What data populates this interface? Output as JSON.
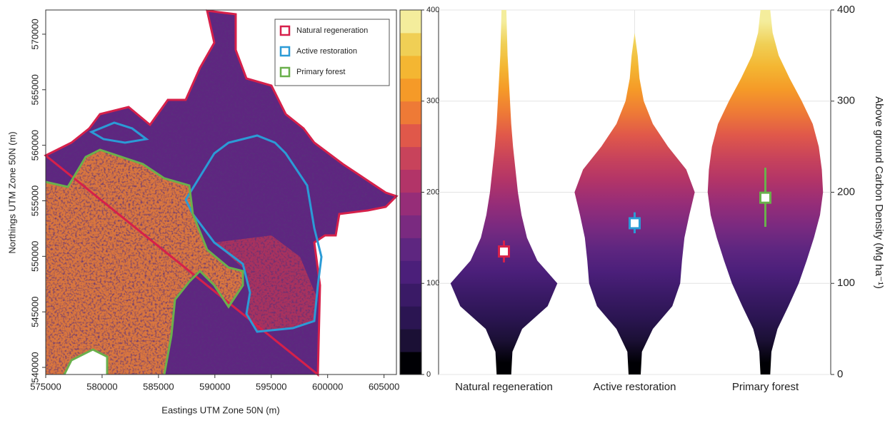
{
  "chart_data": [
    {
      "type": "map",
      "xlabel": "Eastings UTM Zone 50N (m)",
      "ylabel": "Northings UTM Zone 50N (m)",
      "xlim": [
        575000,
        606100
      ],
      "xticks": [
        575000,
        580000,
        585000,
        590000,
        595000,
        600000,
        605000
      ],
      "ylim": [
        539360,
        572180
      ],
      "yticks": [
        540000,
        545000,
        550000,
        555000,
        560000,
        565000,
        570000
      ],
      "legend_position": "upper right",
      "legend": [
        {
          "name": "Natural regeneration",
          "color": "#d6204a"
        },
        {
          "name": "Active restoration",
          "color": "#2b9bd6"
        },
        {
          "name": "Primary forest",
          "color": "#6ab04c"
        }
      ],
      "clim": [
        0,
        400
      ],
      "cticks": [
        0,
        100,
        200,
        300,
        400
      ],
      "colormap": [
        "#000004",
        "#1b1035",
        "#2b1552",
        "#3a1a66",
        "#4b1f7a",
        "#5e2680",
        "#7a2a80",
        "#962d78",
        "#b23468",
        "#c8435b",
        "#e0584a",
        "#ee7a36",
        "#f59a28",
        "#f4b632",
        "#f0cf55",
        "#f4ed9c"
      ]
    },
    {
      "type": "violin",
      "categories": [
        "Natural regeneration",
        "Active restoration",
        "Primary forest"
      ],
      "colors": [
        "#d6204a",
        "#2b9bd6",
        "#6ab04c"
      ],
      "ylabel": "Above ground Carbon Density (Mg ha⁻¹)",
      "ylim": [
        0,
        400
      ],
      "yticks": [
        0,
        100,
        200,
        300,
        400
      ],
      "grid": true,
      "values": [
        135,
        166,
        194
      ],
      "lower": [
        123,
        155,
        162
      ],
      "upper": [
        147,
        178,
        227
      ],
      "kde_y": [
        0,
        25,
        50,
        75,
        100,
        125,
        150,
        175,
        200,
        225,
        250,
        275,
        300,
        325,
        350,
        375,
        400
      ],
      "density": [
        [
          0.12,
          0.14,
          0.3,
          0.72,
          0.88,
          0.55,
          0.38,
          0.29,
          0.23,
          0.19,
          0.15,
          0.12,
          0.1,
          0.08,
          0.06,
          0.05,
          0.04
        ],
        [
          0.1,
          0.12,
          0.3,
          0.62,
          0.75,
          0.78,
          0.82,
          0.9,
          0.99,
          0.85,
          0.55,
          0.3,
          0.15,
          0.08,
          0.05,
          0,
          0
        ],
        [
          0.08,
          0.1,
          0.2,
          0.38,
          0.55,
          0.68,
          0.8,
          0.9,
          0.95,
          0.93,
          0.88,
          0.78,
          0.6,
          0.4,
          0.22,
          0.12,
          0.08
        ]
      ]
    }
  ]
}
